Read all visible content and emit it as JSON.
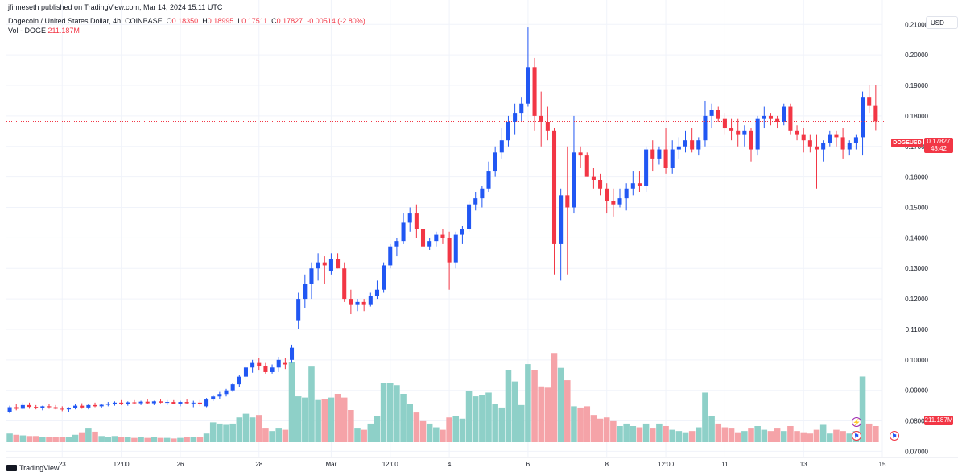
{
  "header": {
    "published": "jfinneseth published on TradingView.com, Mar 14, 2024 15:11 UTC",
    "symbol_line": "Dogecoin / United States Dollar, 4h, COINBASE",
    "ohlc": {
      "O": "0.18350",
      "H": "0.18995",
      "L": "0.17511",
      "C": "0.17827",
      "change": "-0.00514 (-2.80%)"
    },
    "volume_label": "Vol - DOGE",
    "volume_value": "211.187M"
  },
  "currency_button": "USD",
  "last_price": {
    "symbol": "DOGEUSD",
    "price": "0.17827",
    "countdown": "48:42",
    "value": 0.17827
  },
  "volume_last_label": "211.187M",
  "logo_text": "TradingView",
  "colors": {
    "up": "#2157f3",
    "down": "#f23645",
    "vol_up": "#8ed0c8",
    "vol_down": "#f5a3a8",
    "grid": "#f0f3fa",
    "axis_text": "#131722",
    "last_line": "#f23645"
  },
  "event_icons": [
    "lightning-icon",
    "flag-icon",
    "flag-icon"
  ],
  "chart_data": {
    "type": "candlestick",
    "interval": "4h",
    "ylim": [
      0.068,
      0.218
    ],
    "y_ticks": [
      "0.21000",
      "0.20000",
      "0.19000",
      "0.18000",
      "0.17000",
      "0.16000",
      "0.15000",
      "0.14000",
      "0.13000",
      "0.12000",
      "0.11000",
      "0.10000",
      "0.09000",
      "0.08000",
      "0.07000"
    ],
    "x_ticks": [
      {
        "label": "23",
        "bar": 8
      },
      {
        "label": "12:00",
        "bar": 17
      },
      {
        "label": "26",
        "bar": 26
      },
      {
        "label": "28",
        "bar": 38
      },
      {
        "label": "Mar",
        "bar": 49
      },
      {
        "label": "12:00",
        "bar": 58
      },
      {
        "label": "4",
        "bar": 67
      },
      {
        "label": "6",
        "bar": 79
      },
      {
        "label": "8",
        "bar": 91
      },
      {
        "label": "12:00",
        "bar": 100
      },
      {
        "label": "11",
        "bar": 109
      },
      {
        "label": "13",
        "bar": 121
      },
      {
        "label": "15",
        "bar": 133
      }
    ],
    "x_slots": 133.5,
    "vol_max": 130,
    "series_ohlcv": [
      [
        0.083,
        0.085,
        0.0825,
        0.0845,
        14
      ],
      [
        0.0845,
        0.0855,
        0.0835,
        0.084,
        12
      ],
      [
        0.084,
        0.086,
        0.0838,
        0.0852,
        11
      ],
      [
        0.0852,
        0.086,
        0.084,
        0.0846,
        10
      ],
      [
        0.0846,
        0.0852,
        0.0838,
        0.0842,
        10
      ],
      [
        0.0842,
        0.085,
        0.0835,
        0.0848,
        9
      ],
      [
        0.0848,
        0.0855,
        0.084,
        0.0845,
        8
      ],
      [
        0.0845,
        0.0852,
        0.0838,
        0.084,
        9
      ],
      [
        0.084,
        0.0848,
        0.0832,
        0.0838,
        8
      ],
      [
        0.0838,
        0.0845,
        0.083,
        0.0842,
        9
      ],
      [
        0.0842,
        0.0855,
        0.0838,
        0.085,
        12
      ],
      [
        0.085,
        0.0858,
        0.084,
        0.0844,
        16
      ],
      [
        0.0844,
        0.0856,
        0.0838,
        0.0852,
        22
      ],
      [
        0.0852,
        0.086,
        0.0845,
        0.0848,
        17
      ],
      [
        0.0848,
        0.0856,
        0.0842,
        0.0853,
        10
      ],
      [
        0.0853,
        0.0862,
        0.0848,
        0.0856,
        9
      ],
      [
        0.0856,
        0.0864,
        0.085,
        0.086,
        10
      ],
      [
        0.086,
        0.0868,
        0.0852,
        0.0856,
        9
      ],
      [
        0.0856,
        0.0864,
        0.085,
        0.0861,
        8
      ],
      [
        0.0861,
        0.0868,
        0.0855,
        0.0858,
        7
      ],
      [
        0.0858,
        0.0866,
        0.0852,
        0.0863,
        8
      ],
      [
        0.0863,
        0.087,
        0.0856,
        0.0858,
        7
      ],
      [
        0.0858,
        0.0866,
        0.0852,
        0.0864,
        8
      ],
      [
        0.0864,
        0.087,
        0.0858,
        0.086,
        7
      ],
      [
        0.086,
        0.0868,
        0.0852,
        0.0862,
        7
      ],
      [
        0.0862,
        0.0868,
        0.0855,
        0.0857,
        6
      ],
      [
        0.0857,
        0.0866,
        0.0848,
        0.0862,
        7
      ],
      [
        0.0862,
        0.087,
        0.0855,
        0.0858,
        8
      ],
      [
        0.0858,
        0.0866,
        0.0845,
        0.086,
        9
      ],
      [
        0.086,
        0.0868,
        0.0848,
        0.0855,
        8
      ],
      [
        0.0848,
        0.0875,
        0.0845,
        0.087,
        14
      ],
      [
        0.087,
        0.0885,
        0.0865,
        0.088,
        32
      ],
      [
        0.088,
        0.0895,
        0.0872,
        0.0888,
        30
      ],
      [
        0.0888,
        0.0905,
        0.088,
        0.09,
        28
      ],
      [
        0.09,
        0.0925,
        0.0895,
        0.092,
        30
      ],
      [
        0.092,
        0.095,
        0.0912,
        0.0945,
        40
      ],
      [
        0.0945,
        0.098,
        0.0935,
        0.0975,
        46
      ],
      [
        0.0975,
        0.1,
        0.0958,
        0.099,
        40
      ],
      [
        0.099,
        0.1005,
        0.0965,
        0.098,
        44
      ],
      [
        0.098,
        0.099,
        0.0955,
        0.096,
        22
      ],
      [
        0.096,
        0.0985,
        0.0955,
        0.0975,
        18
      ],
      [
        0.0975,
        0.101,
        0.096,
        0.1,
        22
      ],
      [
        0.099,
        0.1005,
        0.097,
        0.0985,
        20
      ],
      [
        0.1,
        0.105,
        0.099,
        0.104,
        130
      ],
      [
        0.113,
        0.122,
        0.11,
        0.12,
        74
      ],
      [
        0.12,
        0.128,
        0.117,
        0.125,
        72
      ],
      [
        0.125,
        0.132,
        0.12,
        0.13,
        122
      ],
      [
        0.13,
        0.135,
        0.126,
        0.132,
        68
      ],
      [
        0.132,
        0.134,
        0.125,
        0.131,
        70
      ],
      [
        0.129,
        0.135,
        0.128,
        0.133,
        72
      ],
      [
        0.133,
        0.135,
        0.13,
        0.13,
        78
      ],
      [
        0.13,
        0.132,
        0.119,
        0.12,
        72
      ],
      [
        0.12,
        0.123,
        0.115,
        0.118,
        52
      ],
      [
        0.118,
        0.12,
        0.116,
        0.119,
        22
      ],
      [
        0.119,
        0.12,
        0.116,
        0.118,
        20
      ],
      [
        0.118,
        0.122,
        0.1175,
        0.121,
        30
      ],
      [
        0.121,
        0.126,
        0.12,
        0.123,
        42
      ],
      [
        0.123,
        0.132,
        0.122,
        0.131,
        96
      ],
      [
        0.131,
        0.138,
        0.13,
        0.137,
        96
      ],
      [
        0.137,
        0.14,
        0.134,
        0.139,
        92
      ],
      [
        0.139,
        0.148,
        0.138,
        0.145,
        78
      ],
      [
        0.145,
        0.15,
        0.142,
        0.148,
        62
      ],
      [
        0.148,
        0.151,
        0.14,
        0.143,
        48
      ],
      [
        0.143,
        0.145,
        0.136,
        0.137,
        34
      ],
      [
        0.137,
        0.14,
        0.136,
        0.139,
        30
      ],
      [
        0.139,
        0.142,
        0.137,
        0.141,
        24
      ],
      [
        0.141,
        0.143,
        0.138,
        0.14,
        20
      ],
      [
        0.14,
        0.142,
        0.123,
        0.132,
        40
      ],
      [
        0.132,
        0.142,
        0.13,
        0.141,
        42
      ],
      [
        0.141,
        0.144,
        0.138,
        0.143,
        38
      ],
      [
        0.143,
        0.152,
        0.142,
        0.151,
        82
      ],
      [
        0.151,
        0.155,
        0.149,
        0.153,
        74
      ],
      [
        0.153,
        0.157,
        0.15,
        0.156,
        76
      ],
      [
        0.156,
        0.165,
        0.155,
        0.162,
        80
      ],
      [
        0.162,
        0.17,
        0.16,
        0.168,
        62
      ],
      [
        0.168,
        0.176,
        0.166,
        0.172,
        56
      ],
      [
        0.172,
        0.18,
        0.17,
        0.178,
        116
      ],
      [
        0.178,
        0.184,
        0.174,
        0.181,
        98
      ],
      [
        0.181,
        0.186,
        0.178,
        0.184,
        60
      ],
      [
        0.184,
        0.209,
        0.183,
        0.196,
        126
      ],
      [
        0.196,
        0.199,
        0.175,
        0.18,
        116
      ],
      [
        0.18,
        0.188,
        0.17,
        0.178,
        90
      ],
      [
        0.178,
        0.183,
        0.172,
        0.175,
        88
      ],
      [
        0.175,
        0.176,
        0.128,
        0.138,
        144
      ],
      [
        0.138,
        0.156,
        0.126,
        0.154,
        120
      ],
      [
        0.154,
        0.17,
        0.128,
        0.15,
        100
      ],
      [
        0.15,
        0.18,
        0.148,
        0.168,
        58
      ],
      [
        0.168,
        0.17,
        0.163,
        0.167,
        56
      ],
      [
        0.167,
        0.168,
        0.16,
        0.16,
        58
      ],
      [
        0.16,
        0.163,
        0.156,
        0.159,
        44
      ],
      [
        0.159,
        0.161,
        0.154,
        0.156,
        38
      ],
      [
        0.156,
        0.158,
        0.148,
        0.152,
        40
      ],
      [
        0.152,
        0.156,
        0.147,
        0.151,
        34
      ],
      [
        0.151,
        0.156,
        0.15,
        0.153,
        26
      ],
      [
        0.153,
        0.158,
        0.149,
        0.156,
        30
      ],
      [
        0.156,
        0.162,
        0.154,
        0.158,
        26
      ],
      [
        0.158,
        0.162,
        0.155,
        0.157,
        24
      ],
      [
        0.157,
        0.17,
        0.155,
        0.169,
        30
      ],
      [
        0.169,
        0.172,
        0.162,
        0.166,
        22
      ],
      [
        0.166,
        0.17,
        0.164,
        0.169,
        30
      ],
      [
        0.169,
        0.176,
        0.161,
        0.163,
        26
      ],
      [
        0.163,
        0.172,
        0.161,
        0.169,
        20
      ],
      [
        0.169,
        0.173,
        0.166,
        0.17,
        18
      ],
      [
        0.17,
        0.175,
        0.168,
        0.172,
        16
      ],
      [
        0.172,
        0.176,
        0.168,
        0.169,
        18
      ],
      [
        0.169,
        0.173,
        0.167,
        0.172,
        24
      ],
      [
        0.172,
        0.185,
        0.17,
        0.18,
        80
      ],
      [
        0.18,
        0.184,
        0.176,
        0.182,
        42
      ],
      [
        0.182,
        0.183,
        0.178,
        0.179,
        30
      ],
      [
        0.179,
        0.181,
        0.174,
        0.176,
        24
      ],
      [
        0.176,
        0.179,
        0.172,
        0.175,
        22
      ],
      [
        0.175,
        0.179,
        0.17,
        0.174,
        16
      ],
      [
        0.174,
        0.177,
        0.17,
        0.175,
        18
      ],
      [
        0.175,
        0.176,
        0.165,
        0.169,
        22
      ],
      [
        0.169,
        0.18,
        0.167,
        0.179,
        26
      ],
      [
        0.179,
        0.183,
        0.176,
        0.18,
        20
      ],
      [
        0.18,
        0.181,
        0.177,
        0.179,
        18
      ],
      [
        0.179,
        0.18,
        0.176,
        0.178,
        22
      ],
      [
        0.178,
        0.184,
        0.177,
        0.183,
        18
      ],
      [
        0.183,
        0.184,
        0.174,
        0.175,
        26
      ],
      [
        0.175,
        0.177,
        0.172,
        0.174,
        18
      ],
      [
        0.174,
        0.176,
        0.168,
        0.172,
        16
      ],
      [
        0.172,
        0.174,
        0.168,
        0.17,
        14
      ],
      [
        0.17,
        0.174,
        0.156,
        0.169,
        20
      ],
      [
        0.169,
        0.172,
        0.165,
        0.171,
        28
      ],
      [
        0.171,
        0.175,
        0.17,
        0.174,
        14
      ],
      [
        0.174,
        0.175,
        0.17,
        0.173,
        20
      ],
      [
        0.173,
        0.176,
        0.166,
        0.169,
        18
      ],
      [
        0.169,
        0.172,
        0.167,
        0.171,
        14
      ],
      [
        0.171,
        0.174,
        0.169,
        0.173,
        18
      ],
      [
        0.173,
        0.188,
        0.167,
        0.186,
        106
      ],
      [
        0.186,
        0.19,
        0.181,
        0.1835,
        30
      ],
      [
        0.1835,
        0.19,
        0.1751,
        0.1783,
        26
      ]
    ]
  }
}
